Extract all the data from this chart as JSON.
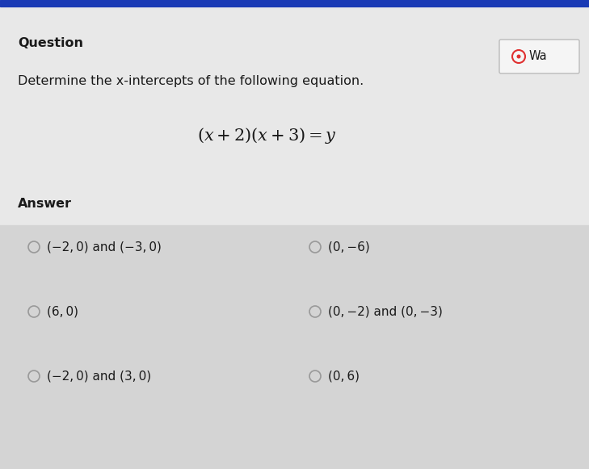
{
  "bg_top_color": "#e8e8e8",
  "bg_bottom_color": "#d4d4d4",
  "top_stripe_color": "#1a3ab5",
  "question_label": "Question",
  "question_label_fontsize": 11.5,
  "question_text": "Determine the x-intercepts of the following equation.",
  "question_text_fontsize": 11.5,
  "equation_fontsize": 15,
  "answer_label": "Answer",
  "answer_label_fontsize": 11.5,
  "options_left": [
    "(−2, 0) and (−3, 0)",
    "(6, 0)",
    "(−2, 0) and (3, 0)"
  ],
  "options_right": [
    "(0, −6)",
    "(0, −2) and (0, −3)",
    "(0, 6)"
  ],
  "option_fontsize": 11,
  "wa_button_text": "Wa",
  "text_color": "#1a1a1a",
  "circle_color": "#999999",
  "answer_section_split": 0.52
}
